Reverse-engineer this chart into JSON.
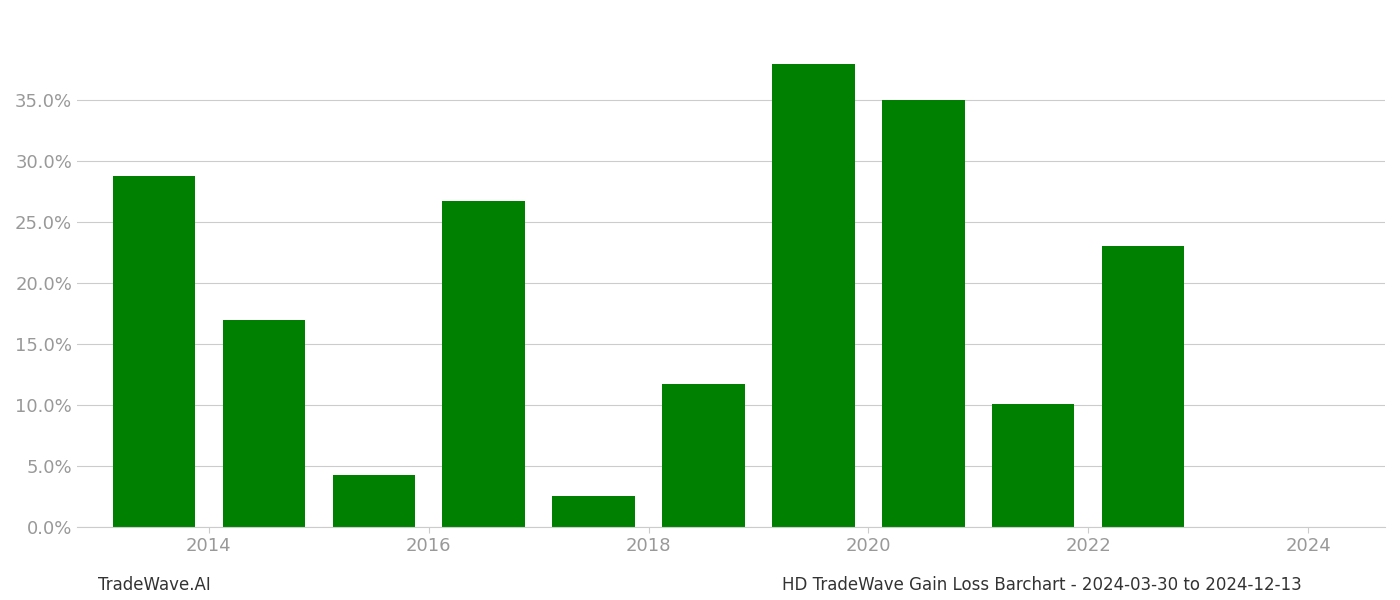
{
  "bar_positions": [
    0,
    1,
    2,
    3,
    4,
    5,
    6,
    7,
    8,
    9
  ],
  "values": [
    0.288,
    0.17,
    0.042,
    0.267,
    0.025,
    0.117,
    0.38,
    0.35,
    0.101,
    0.23
  ],
  "bar_color": "#008000",
  "background_color": "#ffffff",
  "grid_color": "#cccccc",
  "tick_color": "#999999",
  "ylim": [
    0,
    0.42
  ],
  "yticks": [
    0.0,
    0.05,
    0.1,
    0.15,
    0.2,
    0.25,
    0.3,
    0.35
  ],
  "xtick_positions": [
    0.5,
    2.5,
    4.5,
    6.5,
    8.5,
    10.5
  ],
  "xtick_labels": [
    "2014",
    "2016",
    "2018",
    "2020",
    "2022",
    "2024"
  ],
  "xlim": [
    -0.7,
    11.2
  ],
  "footer_left": "TradeWave.AI",
  "footer_right": "HD TradeWave Gain Loss Barchart - 2024-03-30 to 2024-12-13",
  "bar_width": 0.75
}
